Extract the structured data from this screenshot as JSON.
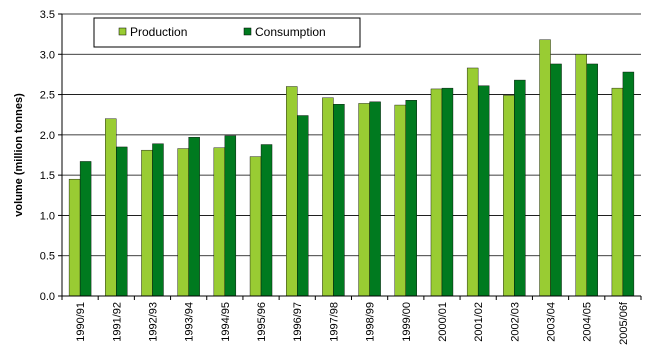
{
  "chart_data": {
    "type": "bar",
    "title": "",
    "xlabel": "",
    "ylabel": "volume (million tonnes)",
    "ylim": [
      0,
      3.5
    ],
    "yticks": [
      "0.0",
      "0.5",
      "1.0",
      "1.5",
      "2.0",
      "2.5",
      "3.0",
      "3.5"
    ],
    "grid": "horizontal",
    "legend_position": "top-left",
    "categories": [
      "1990/91",
      "1991/92",
      "1992/93",
      "1993/94",
      "1994/95",
      "1995/96",
      "1996/97",
      "1997/98",
      "1998/99",
      "1999/00",
      "2000/01",
      "2001/02",
      "2002/03",
      "2003/04",
      "2004/05",
      "2005/06f"
    ],
    "series": [
      {
        "name": "Production",
        "color": "#99CC33",
        "values": [
          1.45,
          2.2,
          1.81,
          1.83,
          1.84,
          1.73,
          2.6,
          2.46,
          2.39,
          2.37,
          2.57,
          2.83,
          2.49,
          3.18,
          3.0,
          2.58
        ]
      },
      {
        "name": "Consumption",
        "color": "#007A1F",
        "values": [
          1.67,
          1.85,
          1.89,
          1.97,
          1.99,
          1.88,
          2.24,
          2.38,
          2.41,
          2.43,
          2.58,
          2.61,
          2.68,
          2.88,
          2.88,
          2.78
        ]
      }
    ]
  }
}
